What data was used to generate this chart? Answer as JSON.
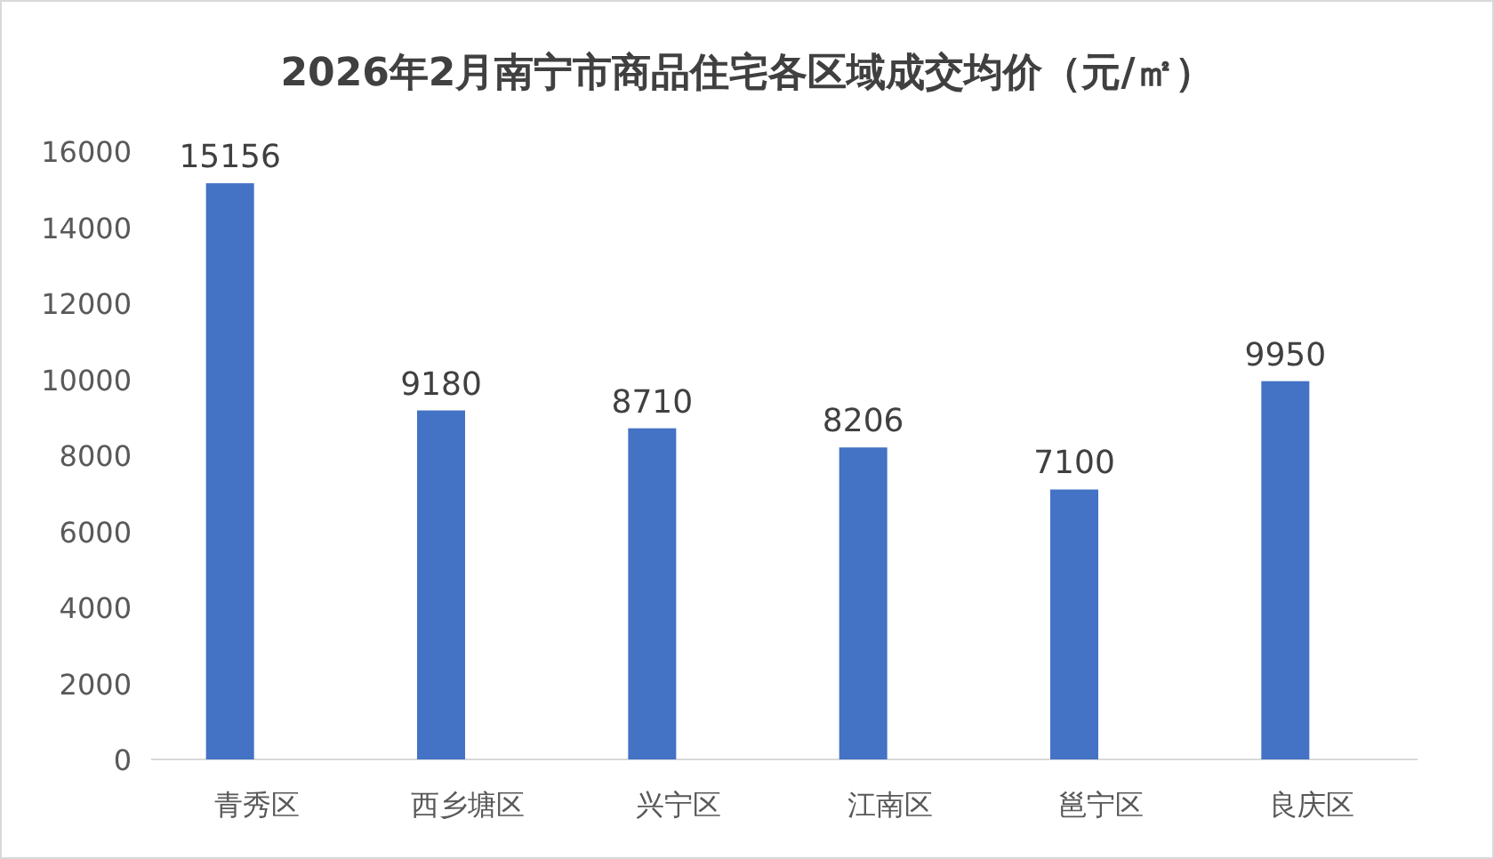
{
  "chart_data": {
    "type": "bar",
    "title": "2026年2月南宁市商品住宅各区域成交均价（元/㎡）",
    "categories": [
      "青秀区",
      "西乡塘区",
      "兴宁区",
      "江南区",
      "邕宁区",
      "良庆区"
    ],
    "values": [
      15156,
      9180,
      8710,
      8206,
      7100,
      9950
    ],
    "color": "#4472c4",
    "ylim": [
      0,
      16000
    ],
    "yticks": [
      0,
      2000,
      4000,
      6000,
      8000,
      10000,
      12000,
      14000,
      16000
    ],
    "grid": false,
    "data_labels": true
  }
}
